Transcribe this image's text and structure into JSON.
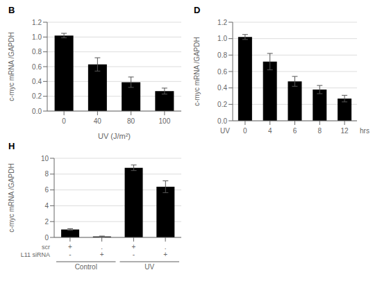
{
  "chart_data": [
    {
      "type": "bar",
      "title": "B",
      "categories": [
        "0",
        "40",
        "80",
        "100"
      ],
      "values": [
        1.02,
        0.63,
        0.39,
        0.27
      ],
      "errors": [
        0.03,
        0.09,
        0.07,
        0.04
      ],
      "xlabel": "UV (J/m²)",
      "ylabel": "c-myc mRNA /GAPDH",
      "ylim": [
        0.0,
        1.2
      ],
      "yticks": [
        {
          "value": 0,
          "label": "0.0"
        },
        0.2,
        0.4,
        0.6,
        0.8,
        {
          "value": 1,
          "label": "1.0"
        },
        1.2
      ],
      "grid": true,
      "color": "#000000"
    },
    {
      "type": "bar",
      "title": "D",
      "categories": [
        "0",
        "4",
        "6",
        "8",
        "12"
      ],
      "values": [
        1.02,
        0.72,
        0.48,
        0.38,
        0.27
      ],
      "errors": [
        0.03,
        0.1,
        0.06,
        0.05,
        0.04
      ],
      "ylabel": "c-myc mRNA /GAPDH",
      "ylim": [
        0.0,
        1.2
      ],
      "yticks": [
        {
          "value": 0,
          "label": "0.0"
        },
        0.2,
        0.4,
        0.6,
        0.8,
        {
          "value": 1,
          "label": "1.0"
        },
        1.2
      ],
      "grid": true,
      "color": "#000000",
      "annotations": [
        "UV",
        "hrs"
      ]
    },
    {
      "type": "bar",
      "title": "H",
      "categories": [
        null,
        null,
        null,
        null
      ],
      "values": [
        1.0,
        0.12,
        8.8,
        6.4
      ],
      "errors": [
        0.1,
        0.05,
        0.35,
        0.75
      ],
      "ylabel": "c-myc mRNA /GAPDH",
      "ylim": [
        0,
        10
      ],
      "yticks": [
        0,
        2,
        4,
        6,
        8,
        10
      ],
      "grid": true,
      "color": "#000000",
      "annotations": {
        "rows": [
          {
            "label": "scr",
            "values": [
              "+",
              ".",
              "+",
              "."
            ]
          },
          {
            "label": "L11 siRNA",
            "values": [
              "-",
              "+",
              "-",
              "+"
            ]
          }
        ],
        "groups": [
          "Control",
          "UV"
        ]
      }
    }
  ]
}
